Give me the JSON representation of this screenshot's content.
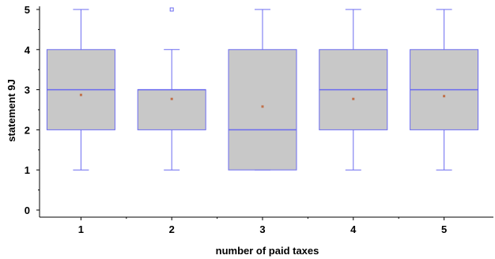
{
  "chart_data": {
    "type": "box",
    "xlabel": "number of paid taxes",
    "ylabel": "statement 9J",
    "ylim": [
      0,
      5
    ],
    "yticks": [
      0,
      1,
      2,
      3,
      4,
      5
    ],
    "categories": [
      "1",
      "2",
      "3",
      "4",
      "5"
    ],
    "boxes": [
      {
        "category": "1",
        "whisker_low": 1,
        "q1": 2,
        "median": 3,
        "q3": 4,
        "whisker_high": 5,
        "mean": 2.87,
        "outliers": []
      },
      {
        "category": "2",
        "whisker_low": 1,
        "q1": 2,
        "median": 3,
        "q3": 3,
        "whisker_high": 4,
        "mean": 2.77,
        "outliers": [
          5
        ]
      },
      {
        "category": "3",
        "whisker_low": 1,
        "q1": 1,
        "median": 2,
        "q3": 4,
        "whisker_high": 5,
        "mean": 2.58,
        "outliers": []
      },
      {
        "category": "4",
        "whisker_low": 1,
        "q1": 2,
        "median": 3,
        "q3": 4,
        "whisker_high": 5,
        "mean": 2.77,
        "outliers": []
      },
      {
        "category": "5",
        "whisker_low": 1,
        "q1": 2,
        "median": 3,
        "q3": 4,
        "whisker_high": 5,
        "mean": 2.84,
        "outliers": []
      }
    ],
    "colors": {
      "box_fill": "#c8c8c8",
      "box_stroke": "#6b6bf0",
      "mean_marker": "#c0704a",
      "axis": "#000000"
    }
  }
}
